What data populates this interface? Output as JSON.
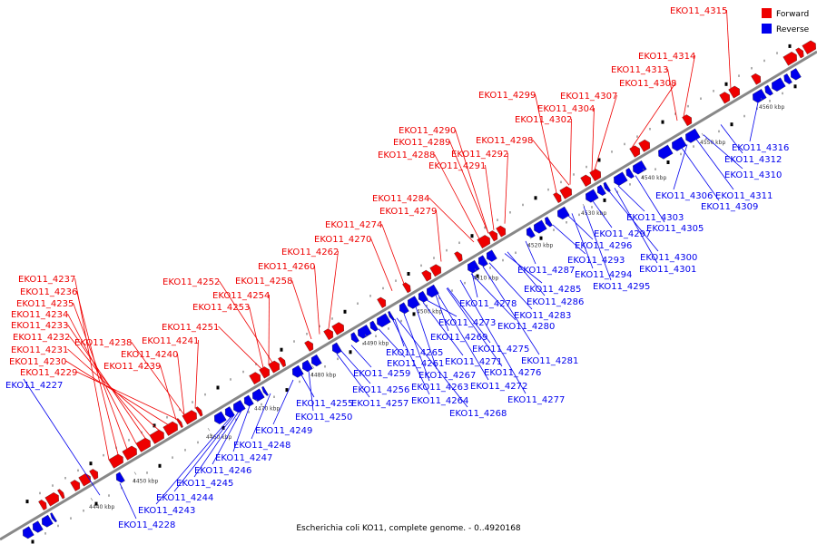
{
  "caption": "Escherichia coli KO11, complete genome. - 0..4920168",
  "legend": {
    "forward": "Forward",
    "reverse": "Reverse"
  },
  "colors": {
    "forward": "#ee0000",
    "reverse": "#0000ee",
    "backbone": "#888888",
    "marker": "#000000"
  },
  "ticks": [
    "4440 kbp",
    "4450 kbp",
    "4460 kbp",
    "4470 kbp",
    "4480 kbp",
    "4490 kbp",
    "4500 kbp",
    "4510 kbp",
    "4520 kbp",
    "4530 kbp",
    "4540 kbp",
    "4550 kbp",
    "4560 kbp"
  ],
  "forward_labels": [
    "EKO11_4315",
    "EKO11_4314",
    "EKO11_4313",
    "EKO11_4308",
    "EKO11_4299",
    "EKO11_4307",
    "EKO11_4304",
    "EKO11_4302",
    "EKO11_4290",
    "EKO11_4289",
    "EKO11_4298",
    "EKO11_4292",
    "EKO11_4288",
    "EKO11_4291",
    "EKO11_4284",
    "EKO11_4279",
    "EKO11_4274",
    "EKO11_4270",
    "EKO11_4262",
    "EKO11_4260",
    "EKO11_4258",
    "EKO11_4237",
    "EKO11_4252",
    "EKO11_4236",
    "EKO11_4254",
    "EKO11_4235",
    "EKO11_4253",
    "EKO11_4234",
    "EKO11_4233",
    "EKO11_4251",
    "EKO11_4232",
    "EKO11_4238",
    "EKO11_4241",
    "EKO11_4231",
    "EKO11_4240",
    "EKO11_4230",
    "EKO11_4239",
    "EKO11_4229"
  ],
  "reverse_labels": [
    "EKO11_4316",
    "EKO11_4312",
    "EKO11_4310",
    "EKO11_4306",
    "EKO11_4311",
    "EKO11_4309",
    "EKO11_4303",
    "EKO11_4305",
    "EKO11_4297",
    "EKO11_4296",
    "EKO11_4300",
    "EKO11_4293",
    "EKO11_4301",
    "EKO11_4287",
    "EKO11_4294",
    "EKO11_4295",
    "EKO11_4285",
    "EKO11_4286",
    "EKO11_4278",
    "EKO11_4283",
    "EKO11_4280",
    "EKO11_4273",
    "EKO11_4269",
    "EKO11_4275",
    "EKO11_4281",
    "EKO11_4265",
    "EKO11_4271",
    "EKO11_4261",
    "EKO11_4276",
    "EKO11_4259",
    "EKO11_4267",
    "EKO11_4263",
    "EKO11_4272",
    "EKO11_4256",
    "EKO11_4264",
    "EKO11_4277",
    "EKO11_4255",
    "EKO11_4257",
    "EKO11_4268",
    "EKO11_4250",
    "EKO11_4249",
    "EKO11_4248",
    "EKO11_4247",
    "EKO11_4227",
    "EKO11_4246",
    "EKO11_4245",
    "EKO11_4244",
    "EKO11_4243",
    "EKO11_4228"
  ]
}
